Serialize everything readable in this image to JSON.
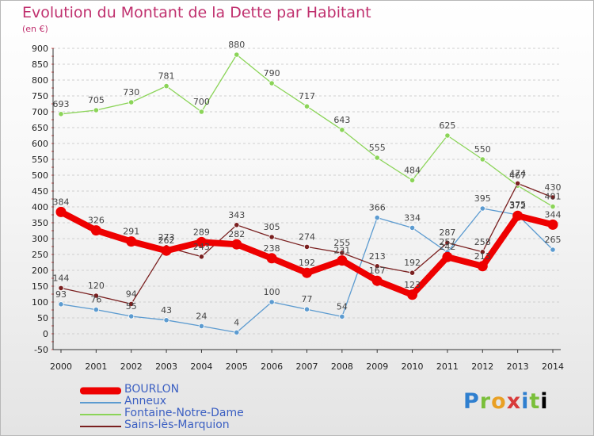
{
  "chart_data": {
    "type": "line",
    "title": "Evolution du Montant de la Dette par Habitant",
    "subtitle": "(en €)",
    "xlabel": "",
    "ylabel": "",
    "x": [
      "2000",
      "2001",
      "2002",
      "2003",
      "2004",
      "2005",
      "2006",
      "2007",
      "2008",
      "2009",
      "2010",
      "2011",
      "2012",
      "2013",
      "2014"
    ],
    "ylim": [
      -50,
      900
    ],
    "yticks": [
      -50,
      0,
      50,
      100,
      150,
      200,
      250,
      300,
      350,
      400,
      450,
      500,
      550,
      600,
      650,
      700,
      750,
      800,
      850,
      900
    ],
    "grid": "horizontal dashed",
    "legend_position": "bottom-left",
    "series": [
      {
        "name": "BOURLON",
        "color": "#ee0000",
        "values": [
          384,
          326,
          291,
          262,
          289,
          282,
          238,
          192,
          231,
          167,
          123,
          242,
          213,
          372,
          344
        ]
      },
      {
        "name": "Anneux",
        "color": "#5c9bd0",
        "values": [
          93,
          76,
          55,
          43,
          24,
          4,
          100,
          77,
          54,
          366,
          334,
          257,
          395,
          375,
          265
        ]
      },
      {
        "name": "Fontaine-Notre-Dame",
        "color": "#8bd458",
        "values": [
          693,
          705,
          730,
          781,
          700,
          880,
          790,
          717,
          643,
          555,
          484,
          625,
          550,
          467,
          401
        ]
      },
      {
        "name": "Sains-lès-Marquion",
        "color": "#7a2020",
        "values": [
          144,
          120,
          94,
          273,
          243,
          343,
          305,
          274,
          255,
          213,
          192,
          287,
          258,
          474,
          430
        ]
      }
    ]
  },
  "logo_text": "Proxiti"
}
